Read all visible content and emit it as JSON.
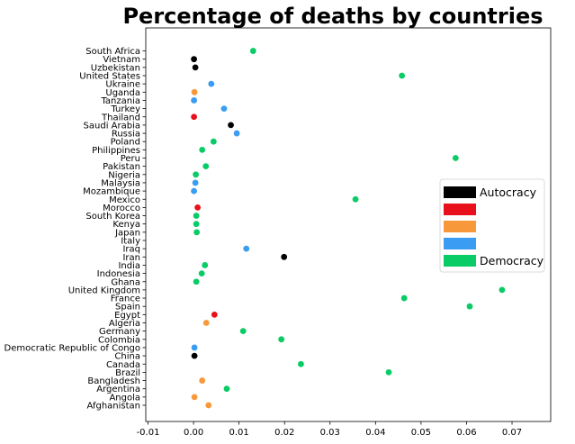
{
  "chart_data": {
    "type": "scatter",
    "title": "Percentage of deaths by countries",
    "xlabel": "",
    "ylabel": "",
    "xlim": [
      -0.0105,
      0.0785
    ],
    "x_ticks": [
      {
        "value": -0.01,
        "label": "-0.01"
      },
      {
        "value": 0.0,
        "label": "0.00"
      },
      {
        "value": 0.01,
        "label": "0.01"
      },
      {
        "value": 0.02,
        "label": "0.02"
      },
      {
        "value": 0.03,
        "label": "0.03"
      },
      {
        "value": 0.04,
        "label": "0.04"
      },
      {
        "value": 0.05,
        "label": "0.05"
      },
      {
        "value": 0.06,
        "label": "0.06"
      },
      {
        "value": 0.07,
        "label": "0.07"
      }
    ],
    "grid": false,
    "legend_position": "center-right",
    "regime_colors": {
      "autocracy": "#000000",
      "red": "#e8101a",
      "orange": "#f7983a",
      "blue": "#3a9cf2",
      "democracy": "#0acc66"
    },
    "legend": [
      {
        "regime": "autocracy",
        "label": "Autocracy"
      },
      {
        "regime": "red",
        "label": ""
      },
      {
        "regime": "orange",
        "label": ""
      },
      {
        "regime": "blue",
        "label": ""
      },
      {
        "regime": "democracy",
        "label": "Democracy"
      }
    ],
    "points": [
      {
        "country": "Afghanistan",
        "x": 0.0033,
        "regime": "orange"
      },
      {
        "country": "Angola",
        "x": 0.0002,
        "regime": "orange"
      },
      {
        "country": "Argentina",
        "x": 0.0073,
        "regime": "democracy"
      },
      {
        "country": "Bangladesh",
        "x": 0.0019,
        "regime": "orange"
      },
      {
        "country": "Brazil",
        "x": 0.0429,
        "regime": "democracy"
      },
      {
        "country": "Canada",
        "x": 0.0236,
        "regime": "democracy"
      },
      {
        "country": "China",
        "x": 0.0002,
        "regime": "autocracy"
      },
      {
        "country": "Democratic Republic of Congo",
        "x": 0.0002,
        "regime": "blue"
      },
      {
        "country": "Colombia",
        "x": 0.0193,
        "regime": "democracy"
      },
      {
        "country": "Germany",
        "x": 0.0109,
        "regime": "democracy"
      },
      {
        "country": "Algeria",
        "x": 0.0028,
        "regime": "orange"
      },
      {
        "country": "Egypt",
        "x": 0.0046,
        "regime": "red"
      },
      {
        "country": "Spain",
        "x": 0.0607,
        "regime": "democracy"
      },
      {
        "country": "France",
        "x": 0.0463,
        "regime": "democracy"
      },
      {
        "country": "United Kingdom",
        "x": 0.0678,
        "regime": "democracy"
      },
      {
        "country": "Ghana",
        "x": 0.0006,
        "regime": "democracy"
      },
      {
        "country": "Indonesia",
        "x": 0.0018,
        "regime": "democracy"
      },
      {
        "country": "India",
        "x": 0.0025,
        "regime": "democracy"
      },
      {
        "country": "Iran",
        "x": 0.0199,
        "regime": "autocracy"
      },
      {
        "country": "Iraq",
        "x": 0.0116,
        "regime": "blue"
      },
      {
        "country": "Italy",
        "x": null,
        "regime": "democracy"
      },
      {
        "country": "Japan",
        "x": 0.0007,
        "regime": "democracy"
      },
      {
        "country": "Kenya",
        "x": 0.0006,
        "regime": "democracy"
      },
      {
        "country": "South Korea",
        "x": 0.0006,
        "regime": "democracy"
      },
      {
        "country": "Morocco",
        "x": 0.0009,
        "regime": "red"
      },
      {
        "country": "Mexico",
        "x": 0.0356,
        "regime": "democracy"
      },
      {
        "country": "Mozambique",
        "x": 0.0001,
        "regime": "blue"
      },
      {
        "country": "Malaysia",
        "x": 0.0004,
        "regime": "blue"
      },
      {
        "country": "Nigeria",
        "x": 0.0005,
        "regime": "democracy"
      },
      {
        "country": "Pakistan",
        "x": 0.0027,
        "regime": "democracy"
      },
      {
        "country": "Peru",
        "x": 0.0576,
        "regime": "democracy"
      },
      {
        "country": "Philippines",
        "x": 0.0019,
        "regime": "democracy"
      },
      {
        "country": "Poland",
        "x": 0.0044,
        "regime": "democracy"
      },
      {
        "country": "Russia",
        "x": 0.0095,
        "regime": "blue"
      },
      {
        "country": "Saudi Arabia",
        "x": 0.0082,
        "regime": "autocracy"
      },
      {
        "country": "Thailand",
        "x": 0.0001,
        "regime": "red"
      },
      {
        "country": "Turkey",
        "x": 0.0067,
        "regime": "blue"
      },
      {
        "country": "Tanzania",
        "x": 0.0001,
        "regime": "blue"
      },
      {
        "country": "Uganda",
        "x": 0.0002,
        "regime": "orange"
      },
      {
        "country": "Ukraine",
        "x": 0.0039,
        "regime": "blue"
      },
      {
        "country": "United States",
        "x": 0.0458,
        "regime": "democracy"
      },
      {
        "country": "Uzbekistan",
        "x": 0.0004,
        "regime": "autocracy"
      },
      {
        "country": "Vietnam",
        "x": 0.0001,
        "regime": "autocracy"
      },
      {
        "country": "South Africa",
        "x": 0.0131,
        "regime": "democracy"
      }
    ]
  }
}
